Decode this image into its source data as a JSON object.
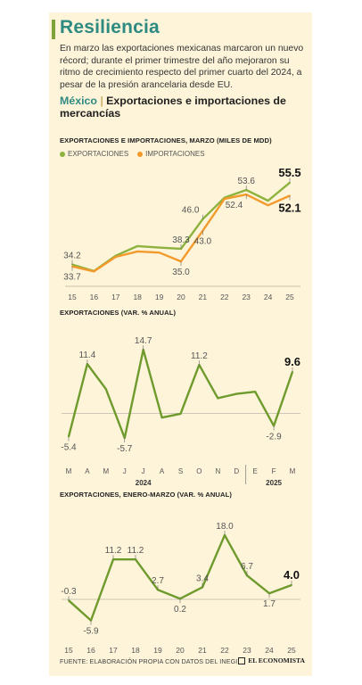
{
  "header": {
    "title": "Resiliencia",
    "intro": "En marzo las exportaciones mexicanas marcaron un nuevo récord; durante el primer trimestre del año mejoraron su ritmo de crecimiento respecto del primer cuarto del 2024, a pesar de la presión arancelaria desde EU.",
    "subhead_country": "México",
    "subhead_sep": " | ",
    "subhead_text": "Exportaciones e importaciones de mercancías"
  },
  "colors": {
    "accent": "#7fa33a",
    "teal": "#2f8a82",
    "background": "#fdf4d9",
    "export_line": "#8db33e",
    "import_line": "#f39a2c",
    "green_line": "#6f9a2c"
  },
  "chart_data": [
    {
      "type": "line",
      "title": "EXPORTACIONES E IMPORTACIONES, MARZO (MILES DE MDD)",
      "categories": [
        "15",
        "16",
        "17",
        "18",
        "19",
        "20",
        "21",
        "22",
        "23",
        "24",
        "25"
      ],
      "series": [
        {
          "name": "EXPORTACIONES",
          "color": "#8db33e",
          "values": [
            34.2,
            32.5,
            36.5,
            39.0,
            38.6,
            38.3,
            46.0,
            51.6,
            53.6,
            50.8,
            55.5
          ]
        },
        {
          "name": "IMPORTACIONES",
          "color": "#f39a2c",
          "values": [
            33.7,
            32.4,
            36.2,
            37.6,
            37.3,
            35.0,
            43.0,
            51.3,
            52.4,
            49.6,
            52.1
          ]
        }
      ],
      "labels": [
        {
          "i": 0,
          "series": 0,
          "text": "34.2",
          "pos": "above"
        },
        {
          "i": 0,
          "series": 1,
          "text": "33.7",
          "pos": "below"
        },
        {
          "i": 5,
          "series": 0,
          "text": "38.3",
          "pos": "above"
        },
        {
          "i": 5,
          "series": 1,
          "text": "35.0",
          "pos": "below"
        },
        {
          "i": 6,
          "series": 0,
          "text": "46.0",
          "pos": "above-left"
        },
        {
          "i": 6,
          "series": 1,
          "text": "43.0",
          "pos": "below"
        },
        {
          "i": 8,
          "series": 0,
          "text": "53.6",
          "pos": "above"
        },
        {
          "i": 8,
          "series": 1,
          "text": "52.4",
          "pos": "below-left"
        },
        {
          "i": 10,
          "series": 0,
          "text": "55.5",
          "pos": "above",
          "bold": true
        },
        {
          "i": 10,
          "series": 1,
          "text": "52.1",
          "pos": "below",
          "bold": true
        }
      ],
      "ylim": [
        29,
        58
      ]
    },
    {
      "type": "line",
      "title": "EXPORTACIONES (VAR. % ANUAL)",
      "categories": [
        "M",
        "A",
        "M",
        "J",
        "J",
        "A",
        "S",
        "O",
        "N",
        "D",
        "E",
        "F",
        "M"
      ],
      "year_labels": [
        {
          "text": "2024",
          "at": 4
        },
        {
          "text": "2025",
          "at": 11
        }
      ],
      "values": [
        -5.4,
        11.4,
        5.6,
        -5.7,
        14.7,
        -1.0,
        -0.1,
        11.2,
        3.5,
        4.5,
        5.0,
        -2.9,
        9.6
      ],
      "labels": [
        {
          "i": 0,
          "text": "-5.4",
          "pos": "below"
        },
        {
          "i": 1,
          "text": "11.4",
          "pos": "above"
        },
        {
          "i": 3,
          "text": "-5.7",
          "pos": "below"
        },
        {
          "i": 4,
          "text": "14.7",
          "pos": "above"
        },
        {
          "i": 7,
          "text": "11.2",
          "pos": "above"
        },
        {
          "i": 11,
          "text": "-2.9",
          "pos": "below"
        },
        {
          "i": 12,
          "text": "9.6",
          "pos": "above",
          "bold": true
        }
      ],
      "ylim": [
        -9,
        17
      ]
    },
    {
      "type": "line",
      "title": "EXPORTACIONES, ENERO-MARZO (VAR. % ANUAL)",
      "categories": [
        "15",
        "16",
        "17",
        "18",
        "19",
        "20",
        "21",
        "22",
        "23",
        "24",
        "25"
      ],
      "values": [
        -0.3,
        -5.9,
        11.2,
        11.2,
        2.7,
        0.2,
        3.4,
        18.0,
        6.7,
        1.7,
        4.0
      ],
      "labels": [
        {
          "i": 0,
          "text": "-0.3",
          "pos": "above"
        },
        {
          "i": 1,
          "text": "-5.9",
          "pos": "below"
        },
        {
          "i": 2,
          "text": "11.2",
          "pos": "above"
        },
        {
          "i": 3,
          "text": "11.2",
          "pos": "above"
        },
        {
          "i": 4,
          "text": "2.7",
          "pos": "above"
        },
        {
          "i": 5,
          "text": "0.2",
          "pos": "below"
        },
        {
          "i": 6,
          "text": "3.4",
          "pos": "above"
        },
        {
          "i": 7,
          "text": "18.0",
          "pos": "above"
        },
        {
          "i": 8,
          "text": "6.7",
          "pos": "above"
        },
        {
          "i": 9,
          "text": "1.7",
          "pos": "below"
        },
        {
          "i": 10,
          "text": "4.0",
          "pos": "above",
          "bold": true
        }
      ],
      "ylim": [
        -9,
        21
      ]
    }
  ],
  "footer": {
    "source": "FUENTE: ELABORACIÓN PROPIA CON DATOS DEL INEGI.",
    "logo": "EL ECONOMISTA"
  }
}
